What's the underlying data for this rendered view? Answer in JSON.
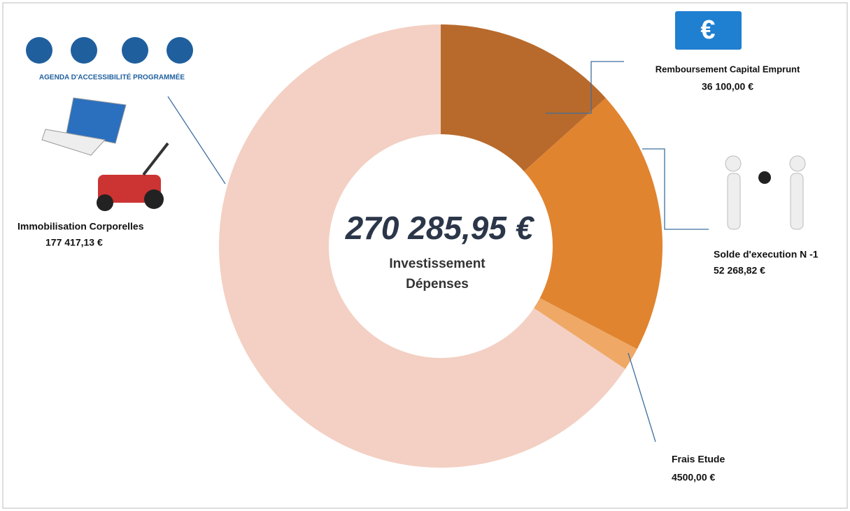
{
  "chart_data": {
    "type": "donut",
    "center_label": "270 285,95 €",
    "center_subtitle": [
      "Investissement",
      "Dépenses"
    ],
    "categories": [
      "Remboursement Capital Emprunt",
      "Solde d'execution N -1",
      "Frais Etude",
      "Immobilisation Corporelles"
    ],
    "values": [
      36100,
      52268.82,
      4500,
      177417.13
    ],
    "value_labels": [
      "36 100,00 €",
      "52 268,82 €",
      "4500,00 €",
      "177 417,13 €"
    ],
    "colors": [
      "#b86a2c",
      "#e0842f",
      "#efa865",
      "#f3d0c3"
    ],
    "icon_texts": {
      "accessibility": "AGENDA D'ACCESSIBILITÉ PROGRAMMÉE",
      "euro": "€"
    }
  }
}
